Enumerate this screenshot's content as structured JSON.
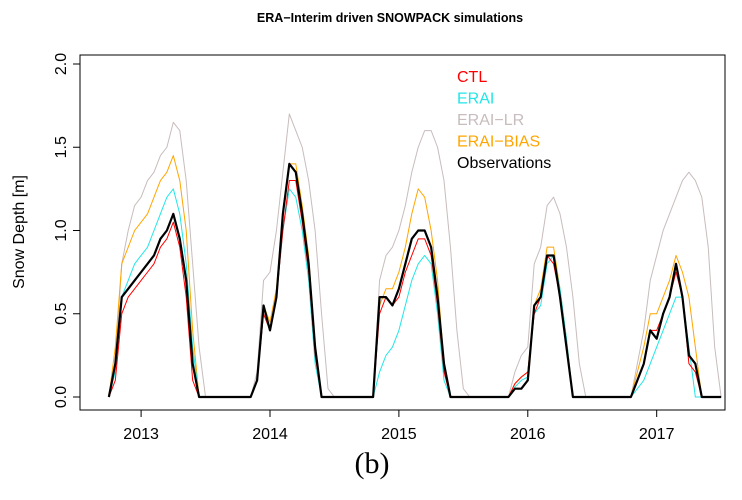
{
  "chart_data": {
    "type": "line",
    "title": "ERA−Interim driven SNOWPACK simulations",
    "y_label": "Snow Depth [m]",
    "panel_label": "(b)",
    "x": [
      2012.75,
      2012.8,
      2012.85,
      2012.9,
      2012.95,
      2013.0,
      2013.05,
      2013.1,
      2013.15,
      2013.2,
      2013.25,
      2013.3,
      2013.35,
      2013.4,
      2013.45,
      2013.5,
      2013.55,
      2013.65,
      2013.75,
      2013.8,
      2013.85,
      2013.9,
      2013.95,
      2014.0,
      2014.05,
      2014.1,
      2014.15,
      2014.2,
      2014.25,
      2014.3,
      2014.35,
      2014.4,
      2014.45,
      2014.5,
      2014.65,
      2014.75,
      2014.8,
      2014.85,
      2014.9,
      2014.95,
      2015.0,
      2015.05,
      2015.1,
      2015.15,
      2015.2,
      2015.25,
      2015.3,
      2015.35,
      2015.4,
      2015.45,
      2015.5,
      2015.55,
      2015.7,
      2015.8,
      2015.85,
      2015.9,
      2015.95,
      2016.0,
      2016.05,
      2016.1,
      2016.15,
      2016.2,
      2016.25,
      2016.3,
      2016.35,
      2016.4,
      2016.45,
      2016.5,
      2016.65,
      2016.75,
      2016.8,
      2016.85,
      2016.9,
      2016.95,
      2017.0,
      2017.05,
      2017.1,
      2017.15,
      2017.2,
      2017.25,
      2017.3,
      2017.35,
      2017.4,
      2017.45,
      2017.5
    ],
    "series": [
      {
        "name": "ERAI−LR",
        "color": "#c8bcbc",
        "width": 1,
        "values": [
          0,
          0.2,
          0.8,
          1.0,
          1.15,
          1.2,
          1.3,
          1.35,
          1.45,
          1.5,
          1.65,
          1.6,
          1.3,
          0.8,
          0.3,
          0,
          0,
          0,
          0,
          0,
          0,
          0.15,
          0.7,
          0.75,
          1.0,
          1.35,
          1.7,
          1.6,
          1.5,
          1.3,
          1.0,
          0.5,
          0.05,
          0,
          0,
          0,
          0,
          0.7,
          0.85,
          0.9,
          1.0,
          1.15,
          1.35,
          1.5,
          1.6,
          1.6,
          1.5,
          1.3,
          0.9,
          0.4,
          0.05,
          0,
          0,
          0,
          0,
          0.15,
          0.25,
          0.3,
          0.8,
          0.9,
          1.15,
          1.2,
          1.1,
          0.9,
          0.6,
          0.2,
          0,
          0,
          0,
          0,
          0,
          0.2,
          0.4,
          0.7,
          0.85,
          1.0,
          1.1,
          1.2,
          1.3,
          1.35,
          1.3,
          1.2,
          0.9,
          0.3,
          0
        ]
      },
      {
        "name": "ERAI−BIAS",
        "color": "#ffa500",
        "width": 1,
        "values": [
          0,
          0.3,
          0.8,
          0.9,
          1.0,
          1.05,
          1.1,
          1.2,
          1.3,
          1.35,
          1.45,
          1.3,
          1.0,
          0.4,
          0,
          0,
          0,
          0,
          0,
          0,
          0,
          0.1,
          0.55,
          0.45,
          0.65,
          1.1,
          1.4,
          1.4,
          1.15,
          0.85,
          0.3,
          0,
          0,
          0,
          0,
          0,
          0,
          0.55,
          0.65,
          0.65,
          0.75,
          0.9,
          1.1,
          1.25,
          1.2,
          1.0,
          0.7,
          0.2,
          0,
          0,
          0,
          0,
          0,
          0,
          0,
          0.08,
          0.12,
          0.15,
          0.55,
          0.65,
          0.9,
          0.9,
          0.65,
          0.35,
          0,
          0,
          0,
          0,
          0,
          0,
          0,
          0.15,
          0.3,
          0.5,
          0.5,
          0.6,
          0.7,
          0.85,
          0.75,
          0.6,
          0.3,
          0,
          0,
          0,
          0
        ]
      },
      {
        "name": "ERAI",
        "color": "#22e6e6",
        "width": 1,
        "values": [
          0,
          0.15,
          0.6,
          0.7,
          0.8,
          0.85,
          0.9,
          1.0,
          1.1,
          1.2,
          1.25,
          1.1,
          0.8,
          0.3,
          0,
          0,
          0,
          0,
          0,
          0,
          0,
          0.1,
          0.5,
          0.4,
          0.6,
          1.0,
          1.25,
          1.2,
          1.0,
          0.7,
          0.2,
          0,
          0,
          0,
          0,
          0,
          0,
          0.15,
          0.25,
          0.3,
          0.4,
          0.55,
          0.7,
          0.8,
          0.85,
          0.8,
          0.5,
          0.1,
          0,
          0,
          0,
          0,
          0,
          0,
          0,
          0.06,
          0.1,
          0.12,
          0.5,
          0.55,
          0.8,
          0.85,
          0.65,
          0.35,
          0,
          0,
          0,
          0,
          0,
          0,
          0,
          0.05,
          0.1,
          0.2,
          0.3,
          0.4,
          0.5,
          0.6,
          0.6,
          0.3,
          0,
          0,
          0,
          0,
          0
        ]
      },
      {
        "name": "CTL",
        "color": "#ff0000",
        "width": 1,
        "values": [
          0,
          0.1,
          0.5,
          0.6,
          0.65,
          0.7,
          0.75,
          0.8,
          0.9,
          0.95,
          1.05,
          0.9,
          0.6,
          0.1,
          0,
          0,
          0,
          0,
          0,
          0,
          0,
          0.1,
          0.5,
          0.4,
          0.6,
          1.0,
          1.3,
          1.3,
          1.05,
          0.75,
          0.25,
          0,
          0,
          0,
          0,
          0,
          0,
          0.5,
          0.6,
          0.55,
          0.6,
          0.75,
          0.85,
          0.95,
          0.95,
          0.85,
          0.55,
          0.15,
          0,
          0,
          0,
          0,
          0,
          0,
          0,
          0.08,
          0.12,
          0.15,
          0.5,
          0.6,
          0.85,
          0.8,
          0.6,
          0.3,
          0,
          0,
          0,
          0,
          0,
          0,
          0,
          0.1,
          0.2,
          0.4,
          0.4,
          0.5,
          0.6,
          0.75,
          0.6,
          0.2,
          0.15,
          0,
          0,
          0,
          0
        ]
      },
      {
        "name": "Observations",
        "color": "#000000",
        "width": 2.2,
        "values": [
          0,
          0.2,
          0.6,
          0.65,
          0.7,
          0.75,
          0.8,
          0.85,
          0.95,
          1.0,
          1.1,
          0.95,
          0.7,
          0.2,
          0,
          0,
          0,
          0,
          0,
          0,
          0,
          0.1,
          0.55,
          0.4,
          0.6,
          1.1,
          1.4,
          1.35,
          1.1,
          0.8,
          0.3,
          0,
          0,
          0,
          0,
          0,
          0,
          0.6,
          0.6,
          0.55,
          0.65,
          0.8,
          0.95,
          1.0,
          1.0,
          0.9,
          0.6,
          0.2,
          0,
          0,
          0,
          0,
          0,
          0,
          0,
          0.05,
          0.05,
          0.1,
          0.55,
          0.6,
          0.85,
          0.85,
          0.6,
          0.3,
          0,
          0,
          0,
          0,
          0,
          0,
          0,
          0.1,
          0.2,
          0.4,
          0.35,
          0.5,
          0.6,
          0.8,
          0.6,
          0.25,
          0.2,
          0,
          0,
          0,
          0
        ]
      }
    ],
    "legend_order": [
      3,
      2,
      0,
      1,
      4
    ],
    "xlim": [
      2012.526,
      2017.53
    ],
    "xticks": [
      2013,
      2014,
      2015,
      2016,
      2017
    ],
    "ylim": [
      -0.078,
      2.054
    ],
    "yticks": [
      {
        "value": 0,
        "label": "0.0"
      },
      {
        "value": 0.5,
        "label": "0.5"
      },
      {
        "value": 1,
        "label": "1.0"
      },
      {
        "value": 1.5,
        "label": "1.5"
      },
      {
        "value": 2,
        "label": "2.0"
      }
    ],
    "grid": false
  }
}
